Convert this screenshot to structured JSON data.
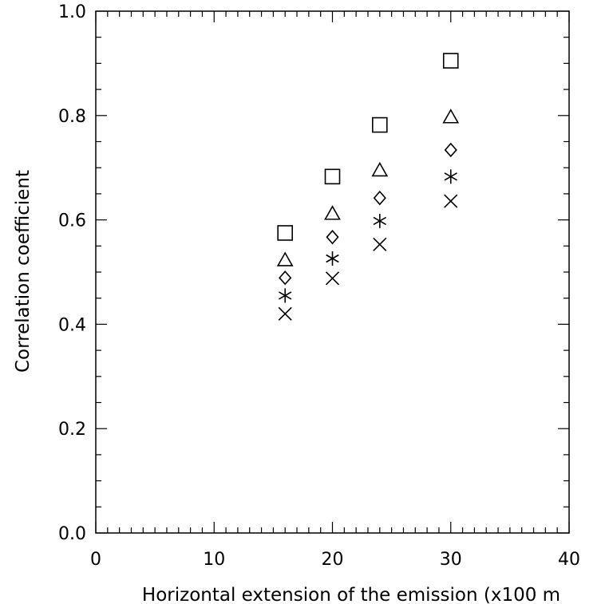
{
  "chart_data": {
    "type": "scatter",
    "title": "",
    "xlabel": "Horizontal extension of the emission (x100 m",
    "ylabel": "Correlation coefficient",
    "xlim": [
      0,
      40
    ],
    "ylim": [
      0.0,
      1.0
    ],
    "x_ticks": [
      0,
      10,
      20,
      30,
      40
    ],
    "x_tick_labels": [
      "0",
      "10",
      "20",
      "30",
      "40"
    ],
    "y_ticks": [
      0.0,
      0.2,
      0.4,
      0.6,
      0.8,
      1.0
    ],
    "y_tick_labels": [
      "0.0",
      "0.2",
      "0.4",
      "0.6",
      "0.8",
      "1.0"
    ],
    "grid": false,
    "legend": "none",
    "color": "#000000",
    "series": [
      {
        "marker": "square",
        "points": [
          [
            16,
            0.575
          ],
          [
            20,
            0.683
          ],
          [
            24,
            0.782
          ],
          [
            30,
            0.905
          ]
        ]
      },
      {
        "marker": "triangle",
        "points": [
          [
            16,
            0.523
          ],
          [
            20,
            0.612
          ],
          [
            24,
            0.695
          ],
          [
            30,
            0.797
          ]
        ]
      },
      {
        "marker": "diamond",
        "points": [
          [
            16,
            0.489
          ],
          [
            20,
            0.567
          ],
          [
            24,
            0.642
          ],
          [
            30,
            0.734
          ]
        ]
      },
      {
        "marker": "asterisk",
        "points": [
          [
            16,
            0.455
          ],
          [
            20,
            0.526
          ],
          [
            24,
            0.598
          ],
          [
            30,
            0.683
          ]
        ]
      },
      {
        "marker": "cross",
        "points": [
          [
            16,
            0.42
          ],
          [
            20,
            0.488
          ],
          [
            24,
            0.553
          ],
          [
            30,
            0.636
          ]
        ]
      }
    ]
  }
}
